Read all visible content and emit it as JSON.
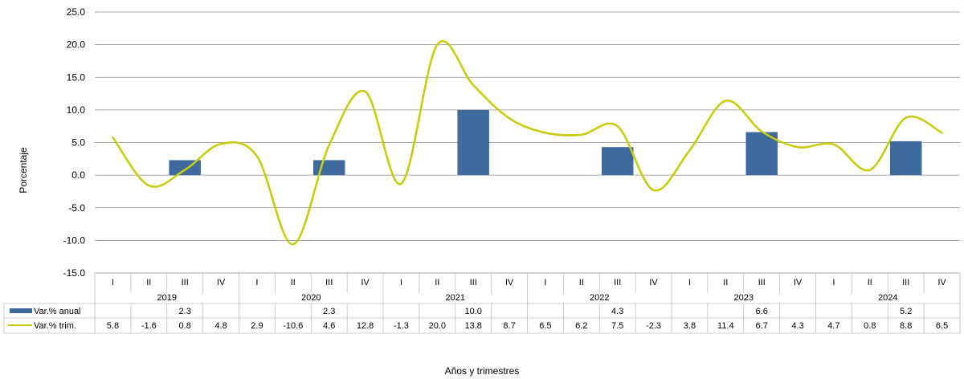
{
  "chart_data": {
    "type": "bar",
    "ylabel": "Porcentaje",
    "xlabel": "Años y trimestres",
    "ylim": [
      -15,
      25
    ],
    "yticks": [
      "25.0",
      "20.0",
      "15.0",
      "10.0",
      "5.0",
      "0.0",
      "-5.0",
      "-10.0",
      "-15.0"
    ],
    "grid": true,
    "quarters": [
      "I",
      "II",
      "III",
      "IV"
    ],
    "years": [
      "2019",
      "2020",
      "2021",
      "2022",
      "2023",
      "2024"
    ],
    "series": [
      {
        "name": "Var.% anual",
        "kind": "bar",
        "color": "#3F6A9E",
        "values": [
          null,
          null,
          2.3,
          null,
          null,
          null,
          2.3,
          null,
          null,
          null,
          10.0,
          null,
          null,
          null,
          4.3,
          null,
          null,
          null,
          6.6,
          null,
          null,
          null,
          5.2,
          null
        ],
        "labels": [
          "",
          "",
          "2.3",
          "",
          "",
          "",
          "2.3",
          "",
          "",
          "",
          "10.0",
          "",
          "",
          "",
          "4.3",
          "",
          "",
          "",
          "6.6",
          "",
          "",
          "",
          "5.2",
          ""
        ]
      },
      {
        "name": "Var.% trim.",
        "kind": "line",
        "color": "#C9CC0C",
        "values": [
          5.8,
          -1.6,
          0.8,
          4.8,
          2.9,
          -10.6,
          4.6,
          12.8,
          -1.3,
          20.0,
          13.8,
          8.7,
          6.5,
          6.2,
          7.5,
          -2.3,
          3.8,
          11.4,
          6.7,
          4.3,
          4.7,
          0.8,
          8.8,
          6.5
        ],
        "labels": [
          "5.8",
          "-1.6",
          "0.8",
          "4.8",
          "2.9",
          "-10.6",
          "4.6",
          "12.8",
          "-1.3",
          "20.0",
          "13.8",
          "8.7",
          "6.5",
          "6.2",
          "7.5",
          "-2.3",
          "3.8",
          "11.4",
          "6.7",
          "4.3",
          "4.7",
          "0.8",
          "8.8",
          "6.5"
        ]
      }
    ]
  }
}
